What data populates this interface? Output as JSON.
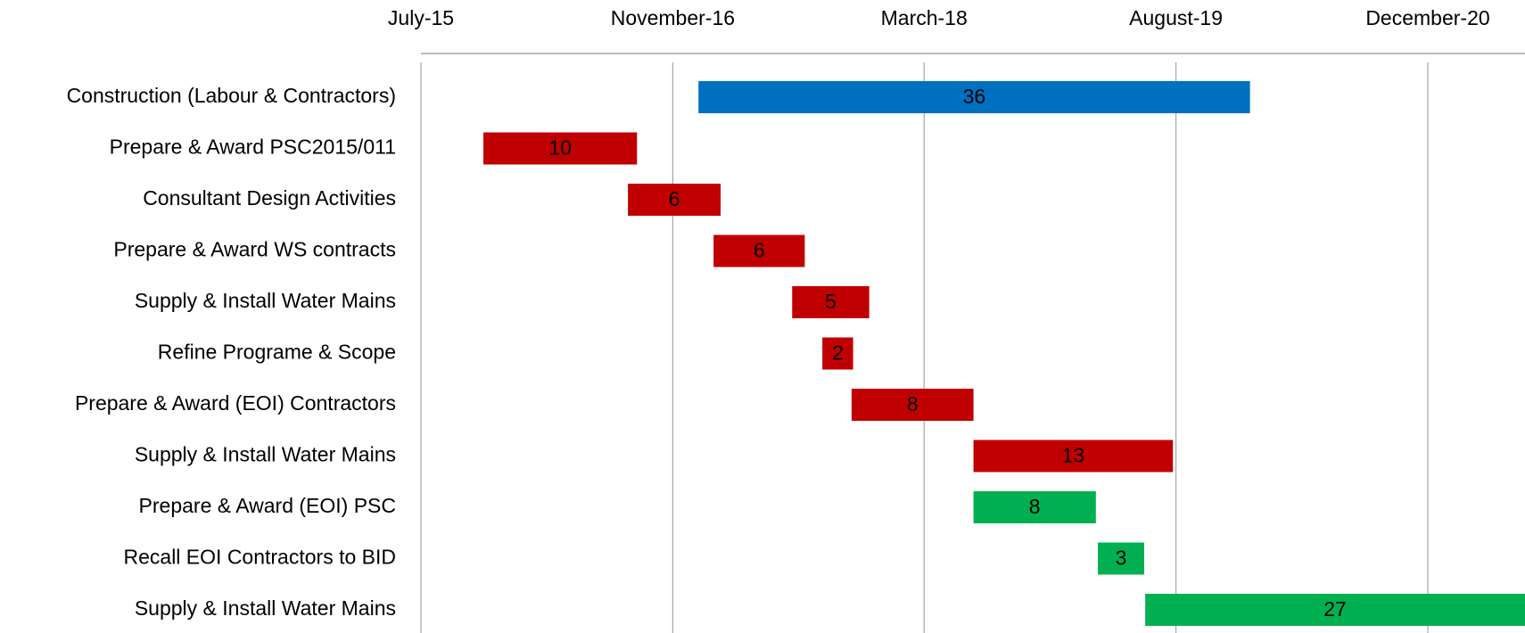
{
  "chart_data": {
    "type": "gantt",
    "tasks": [
      {
        "name": "Construction (Labour & Contractors)",
        "start": "2017-01-02",
        "duration": 36,
        "color": "#0070c0"
      },
      {
        "name": "Prepare & Award PSC2015/011",
        "start": "2015-11-02",
        "duration": 10,
        "color": "#c00000"
      },
      {
        "name": "Consultant Design Activities",
        "start": "2016-08-15",
        "duration": 6,
        "color": "#c00000"
      },
      {
        "name": "Prepare & Award WS contracts",
        "start": "2017-02-01",
        "duration": 6,
        "color": "#c00000"
      },
      {
        "name": "Supply & Install Water Mains",
        "start": "2017-07-07",
        "duration": 5,
        "color": "#c00000"
      },
      {
        "name": "Refine Programe & Scope",
        "start": "2017-09-05",
        "duration": 2,
        "color": "#c00000"
      },
      {
        "name": "Prepare & Award (EOI) Contractors",
        "start": "2017-11-02",
        "duration": 8,
        "color": "#c00000"
      },
      {
        "name": "Supply & Install Water Mains",
        "start": "2018-07-02",
        "duration": 13,
        "color": "#c00000"
      },
      {
        "name": "Prepare & Award (EOI) PSC",
        "start": "2018-07-02",
        "duration": 8,
        "color": "#00b050"
      },
      {
        "name": "Recall EOI Contractors to BID",
        "start": "2019-03-06",
        "duration": 3,
        "color": "#00b050"
      },
      {
        "name": "Supply & Install Water Mains",
        "start": "2019-06-08",
        "duration": 27,
        "color": "#00b050"
      }
    ],
    "xlim": [
      "2015-07-01",
      "2021-07-01"
    ],
    "xticks": [
      {
        "value": "2015-07-01",
        "label": "July-15"
      },
      {
        "value": "2016-11-12",
        "label": "November-16"
      },
      {
        "value": "2018-03-26",
        "label": "March-18"
      },
      {
        "value": "2019-08-08",
        "label": "August-19"
      },
      {
        "value": "2020-12-20",
        "label": "December-20"
      }
    ],
    "grid": true
  }
}
